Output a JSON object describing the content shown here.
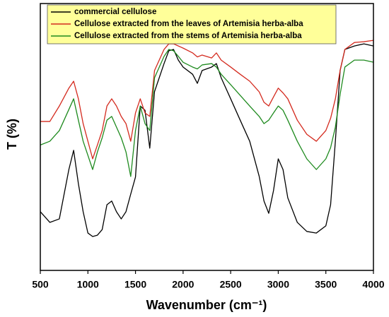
{
  "chart_data": {
    "type": "line",
    "xlabel": "Wavenumber (cm⁻¹)",
    "ylabel": "T (%)",
    "xlim": [
      500,
      4000
    ],
    "xticks": [
      500,
      1000,
      1500,
      2000,
      2500,
      3000,
      3500,
      4000
    ],
    "ylim": [
      0,
      100
    ],
    "yticks": [],
    "grid": false,
    "legend": "top-left",
    "x": [
      500,
      600,
      700,
      800,
      850,
      900,
      950,
      1000,
      1050,
      1100,
      1150,
      1200,
      1250,
      1300,
      1350,
      1400,
      1450,
      1500,
      1550,
      1600,
      1650,
      1700,
      1800,
      1850,
      1900,
      1950,
      2000,
      2100,
      2150,
      2200,
      2300,
      2350,
      2400,
      2500,
      2600,
      2700,
      2800,
      2850,
      2900,
      2950,
      3000,
      3050,
      3100,
      3200,
      3300,
      3400,
      3500,
      3550,
      3600,
      3650,
      3700,
      3800,
      3900,
      4000
    ],
    "series": [
      {
        "name": "commercial cellulose",
        "color": "#000000",
        "values": [
          22,
          18,
          19.3,
          37.8,
          45,
          32.5,
          22,
          14,
          12.7,
          13.2,
          15.3,
          24.6,
          26,
          22,
          19.3,
          22,
          28.6,
          35,
          61.6,
          60,
          45.8,
          67,
          77.5,
          82.3,
          82.8,
          78.8,
          76.2,
          73.5,
          70.1,
          74.9,
          76.2,
          77.5,
          72.2,
          64.3,
          56.3,
          48.4,
          35.2,
          26,
          21.4,
          29.9,
          41.8,
          37.8,
          27.2,
          18,
          14.6,
          14,
          16.7,
          24.6,
          48.4,
          74.9,
          82.8,
          84.1,
          84.9,
          84.1
        ]
      },
      {
        "name": "Cellulose extracted from the leaves of Artemisia herba-alba",
        "color": "#d42a1e",
        "values": [
          55.8,
          55.8,
          61.6,
          68.3,
          70.9,
          64.3,
          55,
          48.4,
          41.8,
          47,
          52.4,
          61.6,
          64.3,
          61.6,
          57.7,
          55,
          48.4,
          59,
          64.3,
          59,
          57.7,
          74.9,
          82.8,
          84.9,
          84.9,
          84.1,
          83.3,
          81.5,
          80,
          80.7,
          79.6,
          81.5,
          78.8,
          76.2,
          73.5,
          70.9,
          66.9,
          63,
          61.6,
          65,
          68.3,
          66.5,
          64.3,
          56.3,
          51,
          48.4,
          52.4,
          57,
          64.3,
          75,
          82.8,
          85.4,
          85.7,
          86.2
        ]
      },
      {
        "name": "Cellulose extracted from the stems of Artemisia herba-alba",
        "color": "#1e8a1e",
        "values": [
          47,
          48.4,
          52.4,
          60.3,
          64.3,
          56.3,
          48.4,
          43.1,
          37.8,
          44.4,
          49.7,
          56.3,
          57.7,
          53.7,
          49.7,
          44.4,
          35.2,
          52.4,
          61.6,
          55,
          52.4,
          72.2,
          80.2,
          82.8,
          82.3,
          80.2,
          78,
          76.2,
          75.5,
          77,
          77.5,
          76.2,
          73.5,
          69.6,
          65.6,
          61.6,
          57.7,
          55,
          56.3,
          59,
          61.6,
          60,
          56.3,
          48.4,
          41.8,
          37.8,
          41.8,
          46,
          53.7,
          66,
          76.2,
          78.8,
          78.8,
          78
        ]
      }
    ]
  }
}
